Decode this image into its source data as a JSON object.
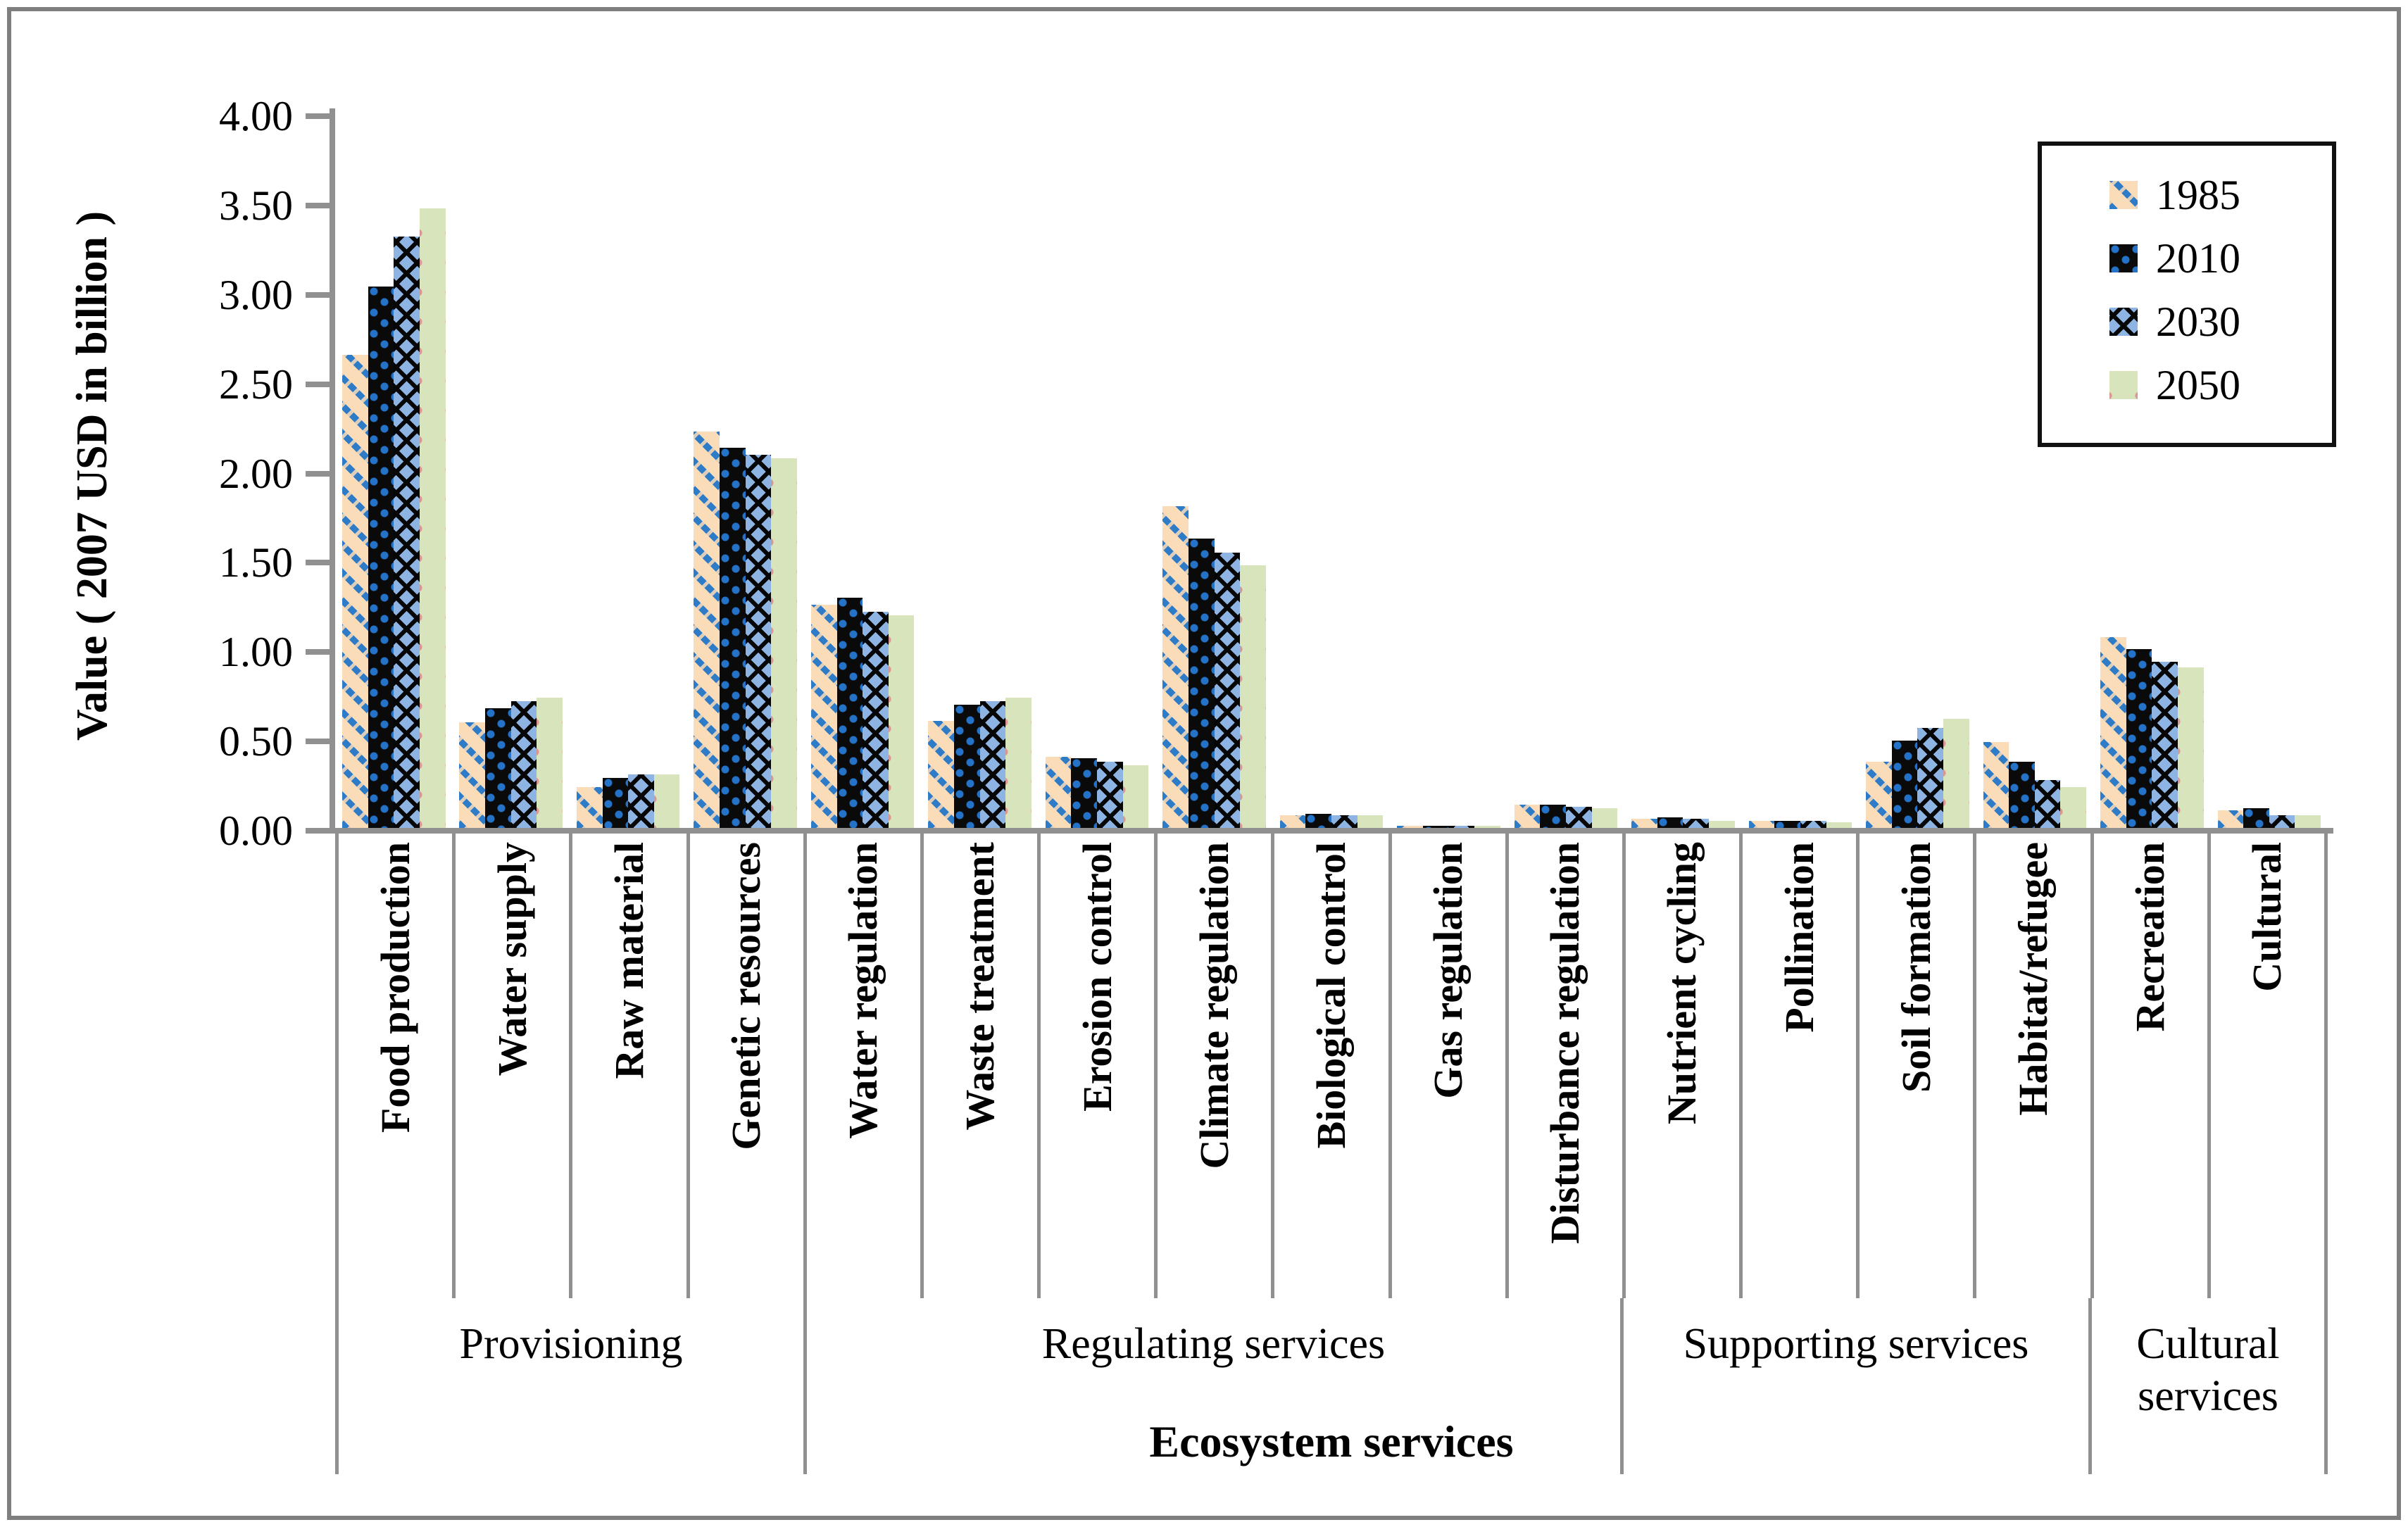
{
  "chart_data": {
    "type": "bar",
    "title": "",
    "ylabel": "Value ( 2007 USD in billion )",
    "xlabel": "Ecosystem services",
    "ylim": [
      0,
      4
    ],
    "grid": false,
    "legend_position": "top-right",
    "ytick_labels": [
      "0.00",
      "0.50",
      "1.00",
      "1.50",
      "2.00",
      "2.50",
      "3.00",
      "3.50",
      "4.00"
    ],
    "ytick_values": [
      0,
      0.5,
      1.0,
      1.5,
      2.0,
      2.5,
      3.0,
      3.5,
      4.0
    ],
    "categories": [
      "Food production",
      "Water supply",
      "Raw material",
      "Genetic resources",
      "Water regulation",
      "Waste treatment",
      "Erosion control",
      "Climate regulation",
      "Biological control",
      "Gas regulation",
      "Disturbance regulation",
      "Nutrient cycling",
      "Pollination",
      "Soil formation",
      "Habitat/refugee",
      "Recreation",
      "Cultural"
    ],
    "groups": [
      {
        "label": "Provisioning",
        "span": 4
      },
      {
        "label": "Regulating services",
        "span": 7
      },
      {
        "label": "Supporting services",
        "span": 4
      },
      {
        "label": "Cultural services",
        "span": 2
      }
    ],
    "series": [
      {
        "name": "1985",
        "pattern": "p1985",
        "values": [
          2.65,
          0.59,
          0.23,
          2.22,
          1.25,
          0.6,
          0.4,
          1.8,
          0.07,
          0.01,
          0.13,
          0.05,
          0.04,
          0.37,
          0.48,
          1.07,
          0.1
        ]
      },
      {
        "name": "2010",
        "pattern": "p2010",
        "values": [
          3.03,
          0.67,
          0.28,
          2.13,
          1.29,
          0.69,
          0.39,
          1.62,
          0.08,
          0.01,
          0.13,
          0.06,
          0.04,
          0.49,
          0.37,
          1.0,
          0.11
        ]
      },
      {
        "name": "2030",
        "pattern": "p2030",
        "values": [
          3.31,
          0.71,
          0.3,
          2.09,
          1.21,
          0.71,
          0.37,
          1.54,
          0.07,
          0.01,
          0.12,
          0.05,
          0.04,
          0.56,
          0.27,
          0.93,
          0.07
        ]
      },
      {
        "name": "2050",
        "pattern": "p2050",
        "values": [
          3.47,
          0.73,
          0.3,
          2.07,
          1.19,
          0.73,
          0.35,
          1.47,
          0.07,
          0.01,
          0.11,
          0.04,
          0.03,
          0.61,
          0.23,
          0.9,
          0.07
        ]
      }
    ],
    "colors": {
      "s1985_base": "#FBDCB8",
      "s1985_stripe": "#2E7BC8",
      "s2010_base": "#0A0A0A",
      "s2010_dot": "#2473C8",
      "s2030_base": "#8EB4E3",
      "s2030_pattern": "#060606",
      "s2050_base": "#D7E4BC",
      "s2050_dot": "#DA9694",
      "axis": "#909090",
      "frame": "#7F7F7F",
      "legend_border": "#111111"
    }
  }
}
